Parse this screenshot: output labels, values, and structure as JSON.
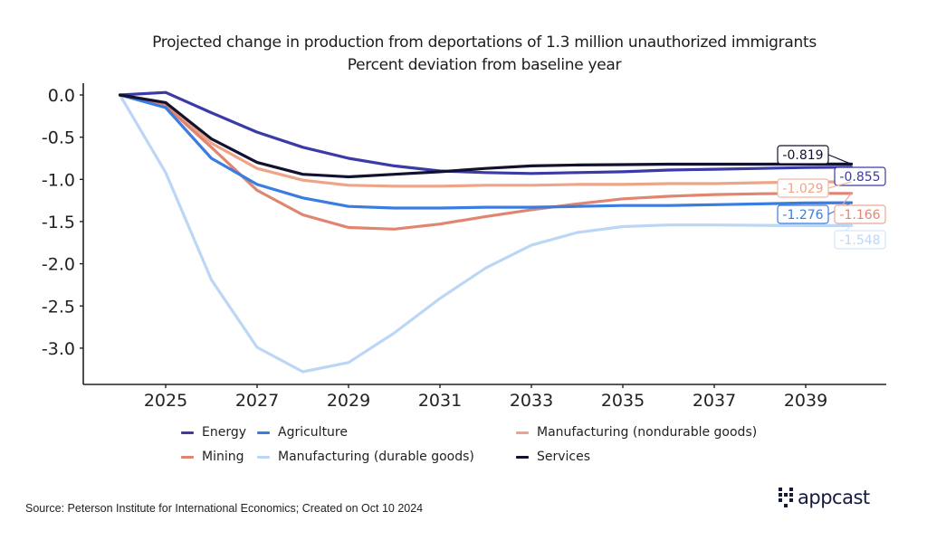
{
  "chart_data": {
    "type": "line",
    "title": "Projected change in production from deportations of 1.3 million unauthorized immigrants",
    "subtitle": "Percent deviation from baseline year",
    "xlabel": "",
    "ylabel": "",
    "x": [
      2024,
      2025,
      2026,
      2027,
      2028,
      2029,
      2030,
      2031,
      2032,
      2033,
      2034,
      2035,
      2036,
      2037,
      2038,
      2039,
      2040
    ],
    "xticks": [
      "2025",
      "2027",
      "2029",
      "2031",
      "2033",
      "2035",
      "2037",
      "2039"
    ],
    "xtick_values": [
      2025,
      2027,
      2029,
      2031,
      2033,
      2035,
      2037,
      2039
    ],
    "yticks": [
      "0.0",
      "-0.5",
      "-1.0",
      "-1.5",
      "-2.0",
      "-2.5",
      "-3.0"
    ],
    "ytick_values": [
      0.0,
      -0.5,
      -1.0,
      -1.5,
      -2.0,
      -2.5,
      -3.0
    ],
    "xlim": [
      2023.2,
      2040.8
    ],
    "ylim": [
      -3.45,
      0.2
    ],
    "grid": false,
    "legend_position": "bottom",
    "series": [
      {
        "name": "Energy",
        "color": "#3a3aa8",
        "values": [
          0,
          0.03,
          -0.21,
          -0.44,
          -0.62,
          -0.75,
          -0.84,
          -0.9,
          -0.92,
          -0.93,
          -0.92,
          -0.91,
          -0.89,
          -0.88,
          -0.87,
          -0.86,
          -0.855
        ],
        "end_label": "-0.855"
      },
      {
        "name": "Agriculture",
        "color": "#3a7de0",
        "values": [
          0,
          -0.15,
          -0.75,
          -1.06,
          -1.22,
          -1.32,
          -1.34,
          -1.34,
          -1.33,
          -1.33,
          -1.32,
          -1.31,
          -1.31,
          -1.3,
          -1.29,
          -1.28,
          -1.276
        ],
        "end_label": "-1.276"
      },
      {
        "name": "Manufacturing (nondurable goods)",
        "color": "#eea488",
        "values": [
          0,
          -0.12,
          -0.57,
          -0.87,
          -1.01,
          -1.07,
          -1.08,
          -1.08,
          -1.07,
          -1.07,
          -1.06,
          -1.06,
          -1.05,
          -1.05,
          -1.04,
          -1.03,
          -1.029
        ],
        "end_label": "-1.029"
      },
      {
        "name": "Mining",
        "color": "#e08570",
        "values": [
          0,
          -0.13,
          -0.62,
          -1.13,
          -1.42,
          -1.57,
          -1.59,
          -1.53,
          -1.44,
          -1.36,
          -1.29,
          -1.23,
          -1.2,
          -1.18,
          -1.17,
          -1.166,
          -1.166
        ],
        "end_label": "-1.166"
      },
      {
        "name": "Manufacturing (durable goods)",
        "color": "#bcd6f5",
        "values": [
          0,
          -0.92,
          -2.19,
          -2.99,
          -3.28,
          -3.17,
          -2.82,
          -2.41,
          -2.05,
          -1.78,
          -1.63,
          -1.56,
          -1.54,
          -1.54,
          -1.545,
          -1.548,
          -1.548
        ],
        "end_label": "-1.548"
      },
      {
        "name": "Services",
        "color": "#12122e",
        "values": [
          0,
          -0.09,
          -0.52,
          -0.8,
          -0.94,
          -0.97,
          -0.94,
          -0.91,
          -0.87,
          -0.84,
          -0.83,
          -0.825,
          -0.82,
          -0.82,
          -0.82,
          -0.819,
          -0.819
        ],
        "end_label": "-0.819"
      }
    ]
  },
  "legend": {
    "items": [
      "Energy",
      "Agriculture",
      "Manufacturing (nondurable goods)",
      "Mining",
      "Manufacturing (durable goods)",
      "Services"
    ]
  },
  "footer": {
    "source": "Source: Peterson Institute for International Economics; Created on Oct 10 2024",
    "logo_text": "appcast"
  }
}
